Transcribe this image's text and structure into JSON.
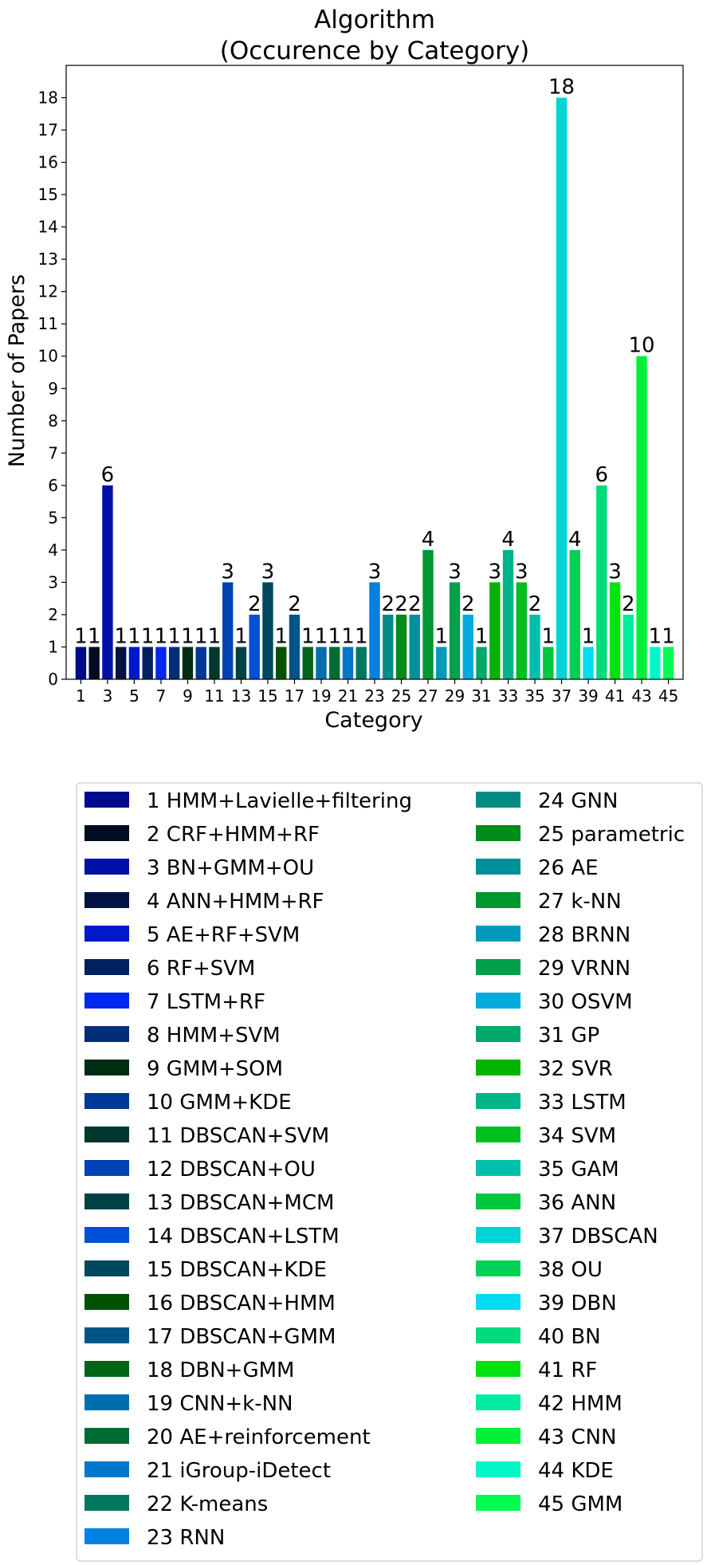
{
  "chart_data": {
    "type": "bar",
    "title": "Algorithm",
    "subtitle": "(Occurence by Category)",
    "xlabel": "Category",
    "ylabel": "Number of Papers",
    "ylim": [
      0,
      19
    ],
    "yticks": [
      0,
      1,
      2,
      3,
      4,
      5,
      6,
      7,
      8,
      9,
      10,
      11,
      12,
      13,
      14,
      15,
      16,
      17,
      18
    ],
    "xticks": [
      "1",
      "3",
      "5",
      "7",
      "9",
      "11",
      "13",
      "15",
      "17",
      "19",
      "21",
      "23",
      "25",
      "27",
      "29",
      "31",
      "33",
      "35",
      "37",
      "39",
      "41",
      "43",
      "45"
    ],
    "grid": false,
    "legend_position": "below",
    "categories": [
      1,
      2,
      3,
      4,
      5,
      6,
      7,
      8,
      9,
      10,
      11,
      12,
      13,
      14,
      15,
      16,
      17,
      18,
      19,
      20,
      21,
      22,
      23,
      24,
      25,
      26,
      27,
      28,
      29,
      30,
      31,
      32,
      33,
      34,
      35,
      36,
      37,
      38,
      39,
      40,
      41,
      42,
      43,
      44,
      45
    ],
    "values": [
      1,
      1,
      6,
      1,
      1,
      1,
      1,
      1,
      1,
      1,
      1,
      3,
      1,
      2,
      3,
      1,
      2,
      1,
      1,
      1,
      1,
      1,
      3,
      2,
      2,
      2,
      4,
      1,
      3,
      2,
      1,
      3,
      4,
      3,
      2,
      1,
      18,
      4,
      1,
      6,
      3,
      2,
      10,
      1,
      1
    ],
    "labels": [
      "1 HMM+Lavielle+filtering",
      "2 CRF+HMM+RF",
      "3 BN+GMM+OU",
      "4 ANN+HMM+RF",
      "5 AE+RF+SVM",
      "6 RF+SVM",
      "7 LSTM+RF",
      "8 HMM+SVM",
      "9 GMM+SOM",
      "10 GMM+KDE",
      "11 DBSCAN+SVM",
      "12 DBSCAN+OU",
      "13 DBSCAN+MCM",
      "14 DBSCAN+LSTM",
      "15 DBSCAN+KDE",
      "16 DBSCAN+HMM",
      "17 DBSCAN+GMM",
      "18 DBN+GMM",
      "19 CNN+k-NN",
      "20 AE+reinforcement",
      "21 iGroup-iDetect",
      "22 K-means",
      "23 RNN",
      "24 GNN",
      "25 parametric",
      "26 AE",
      "27 k-NN",
      "28 BRNN",
      "29 VRNN",
      "30 OSVM",
      "31 GP",
      "32 SVR",
      "33 LSTM",
      "34 SVM",
      "35 GAM",
      "36 ANN",
      "37 DBSCAN",
      "38 OU",
      "39 DBN",
      "40 BN",
      "41 RF",
      "42 HMM",
      "43 CNN",
      "44 KDE",
      "45 GMM"
    ],
    "colors": [
      "#000a8c",
      "#000c22",
      "#0011a8",
      "#001240",
      "#0018cc",
      "#00205e",
      "#0028ee",
      "#002e7a",
      "#002e14",
      "#003896",
      "#00382e",
      "#0042b4",
      "#004246",
      "#0050d8",
      "#00485e",
      "#005200",
      "#005588",
      "#006418",
      "#006eac",
      "#006c34",
      "#0076cc",
      "#007860",
      "#0080e0",
      "#008c82",
      "#008c18",
      "#00909a",
      "#009630",
      "#009abc",
      "#00a04c",
      "#00aadf",
      "#00a86a",
      "#00b400",
      "#00b48c",
      "#00c020",
      "#00c0ac",
      "#00c83c",
      "#00d4d4",
      "#00d054",
      "#00dcf0",
      "#00dc7c",
      "#00e210",
      "#00eca0",
      "#00f038",
      "#00f8c8",
      "#00fc50"
    ]
  }
}
